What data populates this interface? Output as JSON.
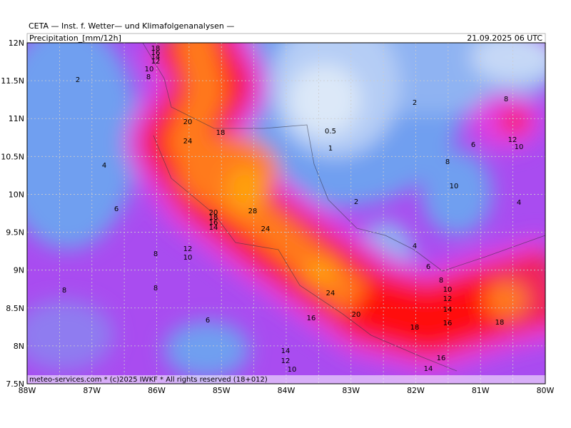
{
  "header": {
    "title": "CETA — Inst. f. Wetter— und Klimafolgenanalysen —",
    "variable": "Precipitation_[mm/12h]",
    "datetime": "21.09.2025 06 UTC"
  },
  "footer": "meteo-services.com * (c)2025 IWKF * All rights reserved (18+012)",
  "axes": {
    "x_ticks": [
      "88W",
      "87W",
      "86W",
      "85W",
      "84W",
      "83W",
      "82W",
      "81W",
      "80W"
    ],
    "y_ticks": [
      "12N",
      "11.5N",
      "11N",
      "10.5N",
      "10N",
      "9.5N",
      "9N",
      "8.5N",
      "8N",
      "7.5N"
    ]
  },
  "contour_labels": [
    "18",
    "16",
    "14",
    "12",
    "10",
    "8",
    "2",
    "20",
    "18",
    "24",
    "0.5",
    "1",
    "2",
    "8",
    "12",
    "10",
    "6",
    "8",
    "10",
    "4",
    "4",
    "6",
    "2",
    "28",
    "20",
    "18",
    "16",
    "14",
    "24",
    "12",
    "10",
    "8",
    "4",
    "6",
    "8",
    "10",
    "12",
    "14",
    "16",
    "18",
    "8",
    "8",
    "24",
    "16",
    "20",
    "18",
    "6",
    "14",
    "12",
    "10",
    "16",
    "14"
  ]
}
